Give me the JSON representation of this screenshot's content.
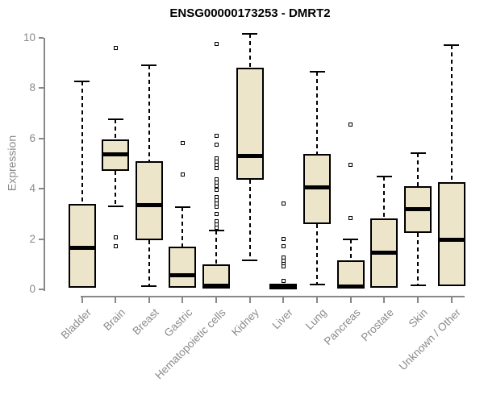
{
  "chart_data": {
    "type": "boxplot",
    "title": "ENSG00000173253 - DMRT2",
    "ylabel": "Expression",
    "xlabel": "",
    "ylim": [
      0,
      10
    ],
    "yticks": [
      0,
      2,
      4,
      6,
      8,
      10
    ],
    "grid": false,
    "legend": "none",
    "categories": [
      "Bladder",
      "Brain",
      "Breast",
      "Gastric",
      "Hematopoietic cells",
      "Kidney",
      "Liver",
      "Lung",
      "Pancreas",
      "Prostate",
      "Skin",
      "Unknown / Other"
    ],
    "series": [
      {
        "name": "Bladder",
        "whisker_low": 0.05,
        "q1": 0.05,
        "median": 1.65,
        "q3": 3.4,
        "whisker_high": 8.25,
        "outliers": []
      },
      {
        "name": "Brain",
        "whisker_low": 3.3,
        "q1": 4.7,
        "median": 5.35,
        "q3": 5.95,
        "whisker_high": 6.75,
        "outliers": [
          9.6,
          2.05,
          1.7
        ]
      },
      {
        "name": "Breast",
        "whisker_low": 0.13,
        "q1": 1.95,
        "median": 3.35,
        "q3": 5.1,
        "whisker_high": 8.9,
        "outliers": []
      },
      {
        "name": "Gastric",
        "whisker_low": 0.05,
        "q1": 0.05,
        "median": 0.55,
        "q3": 1.7,
        "whisker_high": 3.27,
        "outliers": [
          5.8,
          4.55
        ]
      },
      {
        "name": "Hematopoietic cells",
        "whisker_low": 0.03,
        "q1": 0.03,
        "median": 0.15,
        "q3": 1.0,
        "whisker_high": 2.34,
        "outliers": [
          9.75,
          6.1,
          5.75,
          5.2,
          5.08,
          4.95,
          4.82,
          4.37,
          4.24,
          4.1,
          3.97,
          3.67,
          3.54,
          3.4,
          3.28,
          3.0,
          2.72,
          2.58,
          2.45
        ]
      },
      {
        "name": "Kidney",
        "whisker_low": 1.15,
        "q1": 4.35,
        "median": 5.3,
        "q3": 8.8,
        "whisker_high": 10.15,
        "outliers": []
      },
      {
        "name": "Liver",
        "whisker_low": 0.0,
        "q1": 0.0,
        "median": 0.1,
        "q3": 0.22,
        "whisker_high": 0.22,
        "outliers": [
          3.4,
          2.0,
          1.7,
          1.28,
          1.15,
          1.02,
          0.9,
          0.34
        ]
      },
      {
        "name": "Lung",
        "whisker_low": 0.18,
        "q1": 2.6,
        "median": 4.05,
        "q3": 5.37,
        "whisker_high": 8.65,
        "outliers": []
      },
      {
        "name": "Pancreas",
        "whisker_low": 0.03,
        "q1": 0.03,
        "median": 0.12,
        "q3": 1.16,
        "whisker_high": 2.0,
        "outliers": [
          6.55,
          4.95,
          2.82
        ]
      },
      {
        "name": "Prostate",
        "whisker_low": 0.06,
        "q1": 0.06,
        "median": 1.46,
        "q3": 2.82,
        "whisker_high": 4.47,
        "outliers": []
      },
      {
        "name": "Skin",
        "whisker_low": 0.15,
        "q1": 2.25,
        "median": 3.2,
        "q3": 4.1,
        "whisker_high": 5.4,
        "outliers": []
      },
      {
        "name": "Unknown / Other",
        "whisker_low": 0.14,
        "q1": 0.14,
        "median": 1.98,
        "q3": 4.27,
        "whisker_high": 9.7,
        "outliers": []
      }
    ],
    "colors": {
      "box_fill": "#ece5ca",
      "box_border": "#000000",
      "median": "#000000",
      "whisker": "#000000",
      "axis": "#888888",
      "tick_label": "#8a8a8a",
      "title": "#000000",
      "background": "#ffffff"
    }
  }
}
